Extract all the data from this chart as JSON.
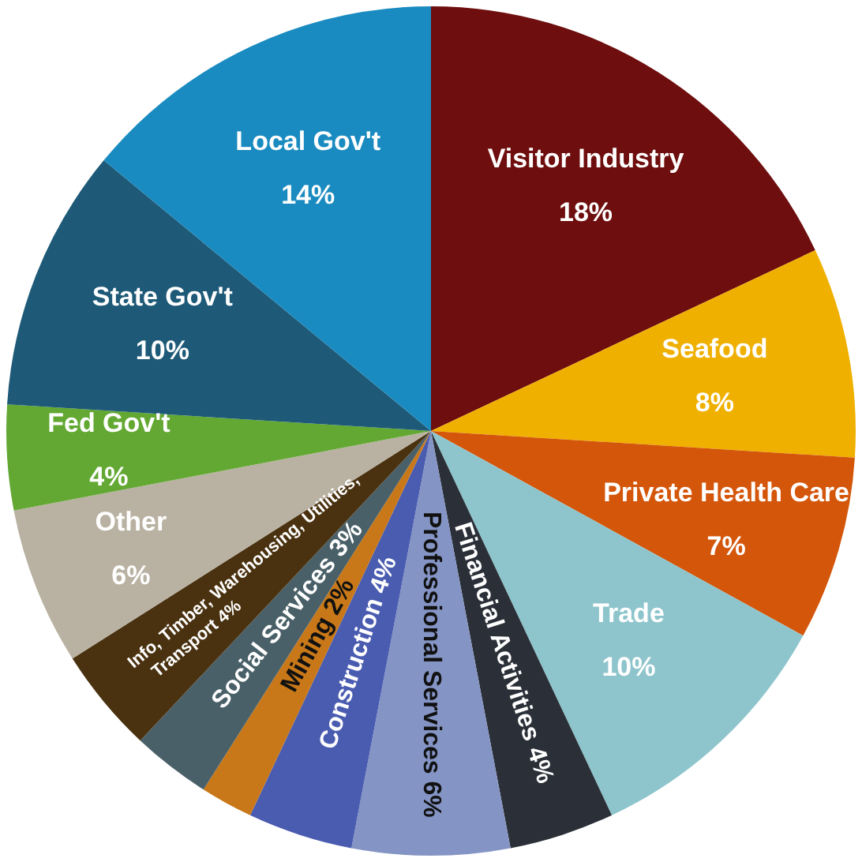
{
  "chart_data": {
    "type": "pie",
    "categories": [
      "Visitor Industry",
      "Seafood",
      "Private Health Care",
      "Trade",
      "Financial Activities",
      "Professional Services",
      "Construction",
      "Mining",
      "Social Services",
      "Info, Timber, Warehousing, Utilities, Transport",
      "Other",
      "Fed Gov't",
      "State Gov't",
      "Local Gov't"
    ],
    "values": [
      18,
      8,
      7,
      10,
      4,
      6,
      4,
      2,
      3,
      4,
      6,
      4,
      10,
      14
    ],
    "value_labels": [
      "18%",
      "8%",
      "7%",
      "10%",
      "4%",
      "6%",
      "4%",
      "2%",
      "3%",
      "4%",
      "6%",
      "4%",
      "10%",
      "14%"
    ],
    "colors": [
      "#6e0e0e",
      "#efb000",
      "#d4560a",
      "#8ec5cc",
      "#2b3038",
      "#8494c4",
      "#4a5cb0",
      "#c87818",
      "#4a6068",
      "#4a3210",
      "#b9b2a2",
      "#62a832",
      "#1e5a78",
      "#1a8bc0"
    ],
    "data_labels": true,
    "legend": false
  }
}
